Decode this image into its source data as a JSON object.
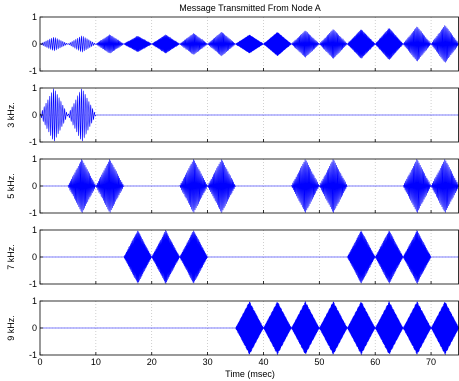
{
  "chart_data": {
    "type": "line",
    "title": "Message Transmitted From Node A",
    "xlabel": "Time (msec)",
    "xlim": [
      0,
      75
    ],
    "x_ticks": [
      0,
      10,
      20,
      30,
      40,
      50,
      60,
      70
    ],
    "grid": true,
    "series_color": "#0000ff",
    "burst_duration_ms": 5,
    "panels": [
      {
        "ylabel": "",
        "ylim": [
          -1,
          1
        ],
        "y_ticks": [
          -1,
          0,
          1
        ],
        "bursts": [
          {
            "start": 0,
            "amplitude": 0.25,
            "freq_khz": 3
          },
          {
            "start": 5,
            "amplitude": 0.3,
            "freq_khz": 3
          },
          {
            "start": 10,
            "amplitude": 0.35,
            "freq_khz": 5
          },
          {
            "start": 15,
            "amplitude": 0.3,
            "freq_khz": 7
          },
          {
            "start": 20,
            "amplitude": 0.35,
            "freq_khz": 7
          },
          {
            "start": 25,
            "amplitude": 0.4,
            "freq_khz": 5
          },
          {
            "start": 30,
            "amplitude": 0.45,
            "freq_khz": 5
          },
          {
            "start": 35,
            "amplitude": 0.35,
            "freq_khz": 9
          },
          {
            "start": 40,
            "amplitude": 0.45,
            "freq_khz": 9
          },
          {
            "start": 45,
            "amplitude": 0.5,
            "freq_khz": 5
          },
          {
            "start": 50,
            "amplitude": 0.55,
            "freq_khz": 5
          },
          {
            "start": 55,
            "amplitude": 0.55,
            "freq_khz": 7
          },
          {
            "start": 60,
            "amplitude": 0.6,
            "freq_khz": 7
          },
          {
            "start": 65,
            "amplitude": 0.65,
            "freq_khz": 5
          },
          {
            "start": 70,
            "amplitude": 0.7,
            "freq_khz": 5
          }
        ]
      },
      {
        "ylabel": "3 kHz.",
        "ylim": [
          -1,
          1
        ],
        "y_ticks": [
          -1,
          0,
          1
        ],
        "bursts": [
          {
            "start": 0,
            "amplitude": 1,
            "freq_khz": 3
          },
          {
            "start": 5,
            "amplitude": 1,
            "freq_khz": 3
          }
        ]
      },
      {
        "ylabel": "5 kHz.",
        "ylim": [
          -1,
          1
        ],
        "y_ticks": [
          -1,
          0,
          1
        ],
        "bursts": [
          {
            "start": 5,
            "amplitude": 1,
            "freq_khz": 5
          },
          {
            "start": 10,
            "amplitude": 1,
            "freq_khz": 5
          },
          {
            "start": 25,
            "amplitude": 1,
            "freq_khz": 5
          },
          {
            "start": 30,
            "amplitude": 1,
            "freq_khz": 5
          },
          {
            "start": 45,
            "amplitude": 1,
            "freq_khz": 5
          },
          {
            "start": 50,
            "amplitude": 1,
            "freq_khz": 5
          },
          {
            "start": 65,
            "amplitude": 1,
            "freq_khz": 5
          },
          {
            "start": 70,
            "amplitude": 1,
            "freq_khz": 5
          }
        ]
      },
      {
        "ylabel": "7 kHz.",
        "ylim": [
          -1,
          1
        ],
        "y_ticks": [
          -1,
          0,
          1
        ],
        "bursts": [
          {
            "start": 15,
            "amplitude": 1,
            "freq_khz": 7
          },
          {
            "start": 20,
            "amplitude": 1,
            "freq_khz": 7
          },
          {
            "start": 25,
            "amplitude": 1,
            "freq_khz": 7
          },
          {
            "start": 55,
            "amplitude": 1,
            "freq_khz": 7
          },
          {
            "start": 60,
            "amplitude": 1,
            "freq_khz": 7
          },
          {
            "start": 65,
            "amplitude": 1,
            "freq_khz": 7
          }
        ]
      },
      {
        "ylabel": "9 kHz.",
        "ylim": [
          -1,
          1
        ],
        "y_ticks": [
          -1,
          0,
          1
        ],
        "bursts": [
          {
            "start": 35,
            "amplitude": 1,
            "freq_khz": 9
          },
          {
            "start": 40,
            "amplitude": 1,
            "freq_khz": 9
          },
          {
            "start": 45,
            "amplitude": 1,
            "freq_khz": 9
          },
          {
            "start": 50,
            "amplitude": 1,
            "freq_khz": 9
          },
          {
            "start": 55,
            "amplitude": 1,
            "freq_khz": 9
          },
          {
            "start": 60,
            "amplitude": 1,
            "freq_khz": 9
          },
          {
            "start": 65,
            "amplitude": 1,
            "freq_khz": 9
          },
          {
            "start": 70,
            "amplitude": 1,
            "freq_khz": 9
          }
        ]
      }
    ]
  }
}
